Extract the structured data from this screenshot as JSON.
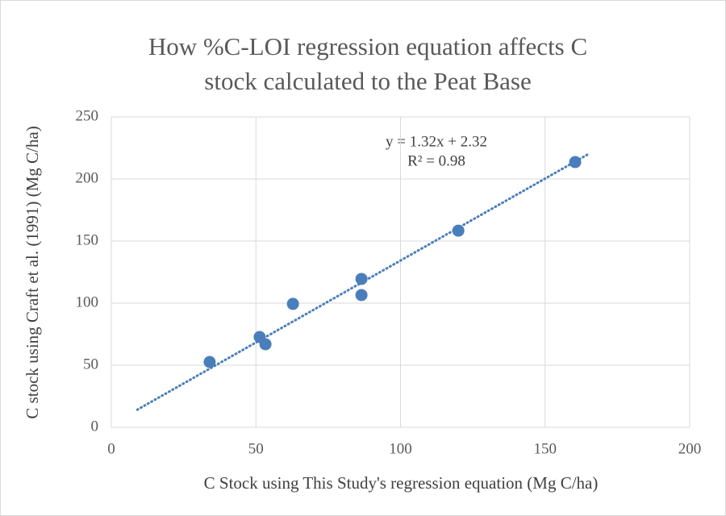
{
  "chart_data": {
    "type": "scatter",
    "title": [
      "How %C-LOI regression equation affects C",
      "stock calculated to the Peat Base"
    ],
    "xlabel": "C Stock using This Study's regression equation (Mg C/ha)",
    "ylabel": "C stock using Craft et al. (1991) (Mg C/ha)",
    "series": [
      {
        "name": "C stock",
        "color": "#4a7ebb",
        "x": [
          34,
          51.3,
          53.3,
          62.8,
          86.5,
          86.5,
          120,
          160.4
        ],
        "values": [
          52.6,
          72.7,
          66.9,
          99.4,
          119.5,
          106.5,
          158.4,
          213.6
        ]
      }
    ],
    "trendline": {
      "slope": 1.32,
      "intercept": 2.32,
      "x": [
        9,
        165
      ],
      "color": "#4a7ebb",
      "equation": "y = 1.32x + 2.32",
      "r2": "R² = 0.98"
    },
    "xlim": [
      0,
      200
    ],
    "xticks": [
      0,
      50,
      100,
      150,
      200
    ],
    "ylim": [
      0,
      250
    ],
    "yticks": [
      0,
      50,
      100,
      150,
      200,
      250
    ],
    "grid": true
  }
}
